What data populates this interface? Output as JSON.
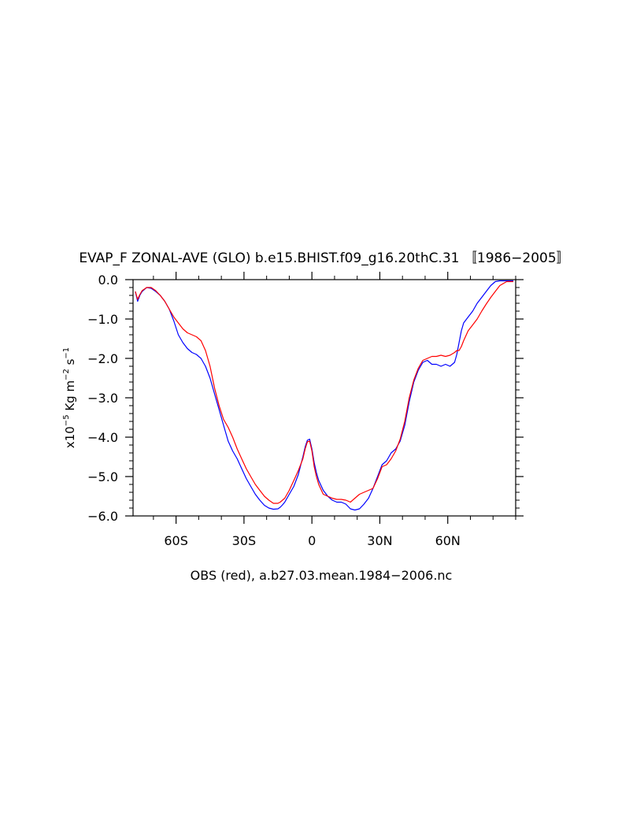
{
  "chart_data": {
    "type": "line",
    "title": "EVAP_F ZONAL-AVE (GLO) b.e15.BHIST.f09_g16.20thC.31 〚1986−2005〛",
    "ylabel": {
      "prefix": "x10",
      "exp1": "−5",
      "unit_a": " Kg m",
      "exp2": "−2",
      "unit_b": " s",
      "exp3": "−1"
    },
    "xlabel": "OBS (red), a.b27.03.mean.1984−2006.nc",
    "xlim": [
      -79,
      90
    ],
    "ylim": [
      -6.0,
      0.0
    ],
    "x_ticks": [
      {
        "value": -60,
        "label": "60S"
      },
      {
        "value": -30,
        "label": "30S"
      },
      {
        "value": 0,
        "label": "0"
      },
      {
        "value": 30,
        "label": "30N"
      },
      {
        "value": 60,
        "label": "60N"
      }
    ],
    "y_ticks": [
      {
        "value": 0.0,
        "label": "0.0"
      },
      {
        "value": -1.0,
        "label": "−1.0"
      },
      {
        "value": -2.0,
        "label": "−2.0"
      },
      {
        "value": -3.0,
        "label": "−3.0"
      },
      {
        "value": -4.0,
        "label": "−4.0"
      },
      {
        "value": -5.0,
        "label": "−5.0"
      },
      {
        "value": -6.0,
        "label": "−6.0"
      }
    ],
    "grid": false,
    "series": [
      {
        "color": "#0000ff",
        "x": [
          -78,
          -77,
          -76,
          -75,
          -73,
          -71,
          -69,
          -67,
          -65,
          -63,
          -61,
          -59,
          -57,
          -55,
          -53,
          -51,
          -49,
          -47,
          -45,
          -43,
          -41,
          -39,
          -37,
          -35,
          -33,
          -31,
          -29,
          -27,
          -25,
          -23,
          -21,
          -19,
          -17,
          -15,
          -14,
          -13,
          -12,
          -10,
          -8,
          -6,
          -4,
          -3,
          -2,
          -1,
          0,
          1,
          2,
          3,
          5,
          7,
          9,
          11,
          13,
          15,
          17,
          19,
          21,
          23,
          25,
          27,
          29,
          31,
          33,
          35,
          37,
          39,
          41,
          43,
          45,
          47,
          49,
          51,
          53,
          55,
          57,
          59,
          61,
          63,
          64,
          65,
          66,
          67,
          69,
          71,
          73,
          75,
          77,
          79,
          81,
          83,
          86,
          89
        ],
        "y": [
          -0.3,
          -0.55,
          -0.4,
          -0.3,
          -0.2,
          -0.22,
          -0.3,
          -0.4,
          -0.55,
          -0.75,
          -1.05,
          -1.4,
          -1.6,
          -1.75,
          -1.85,
          -1.9,
          -2.0,
          -2.2,
          -2.5,
          -2.9,
          -3.3,
          -3.7,
          -4.1,
          -4.35,
          -4.55,
          -4.8,
          -5.05,
          -5.25,
          -5.45,
          -5.6,
          -5.73,
          -5.8,
          -5.83,
          -5.82,
          -5.78,
          -5.72,
          -5.65,
          -5.45,
          -5.25,
          -4.95,
          -4.5,
          -4.25,
          -4.08,
          -4.05,
          -4.3,
          -4.65,
          -4.9,
          -5.1,
          -5.35,
          -5.5,
          -5.6,
          -5.65,
          -5.65,
          -5.7,
          -5.82,
          -5.85,
          -5.82,
          -5.7,
          -5.55,
          -5.3,
          -5.0,
          -4.7,
          -4.6,
          -4.4,
          -4.3,
          -4.1,
          -3.7,
          -3.1,
          -2.6,
          -2.3,
          -2.1,
          -2.05,
          -2.15,
          -2.15,
          -2.2,
          -2.15,
          -2.2,
          -2.1,
          -1.9,
          -1.6,
          -1.3,
          -1.1,
          -0.95,
          -0.8,
          -0.6,
          -0.45,
          -0.3,
          -0.15,
          -0.05,
          -0.03,
          -0.03,
          -0.03
        ]
      },
      {
        "color": "#ff0000",
        "x": [
          -78,
          -77,
          -76,
          -75,
          -73,
          -71,
          -69,
          -67,
          -65,
          -63,
          -61,
          -59,
          -57,
          -55,
          -53,
          -51,
          -49,
          -47,
          -45,
          -43,
          -41,
          -39,
          -37,
          -35,
          -33,
          -31,
          -29,
          -27,
          -25,
          -23,
          -21,
          -19,
          -17,
          -15,
          -14,
          -13,
          -12,
          -10,
          -8,
          -6,
          -4,
          -3,
          -2,
          -1,
          0,
          1,
          2,
          3,
          5,
          7,
          9,
          11,
          13,
          15,
          17,
          19,
          21,
          23,
          25,
          27,
          29,
          31,
          33,
          35,
          37,
          39,
          41,
          43,
          45,
          47,
          49,
          51,
          53,
          55,
          57,
          59,
          61,
          63,
          64,
          65,
          66,
          67,
          69,
          71,
          73,
          75,
          77,
          79,
          81,
          83,
          86,
          89
        ],
        "y": [
          -0.3,
          -0.5,
          -0.38,
          -0.28,
          -0.2,
          -0.2,
          -0.28,
          -0.4,
          -0.55,
          -0.75,
          -0.95,
          -1.1,
          -1.25,
          -1.35,
          -1.4,
          -1.45,
          -1.55,
          -1.8,
          -2.2,
          -2.75,
          -3.2,
          -3.55,
          -3.75,
          -4.0,
          -4.3,
          -4.55,
          -4.8,
          -5.0,
          -5.2,
          -5.35,
          -5.5,
          -5.6,
          -5.68,
          -5.68,
          -5.65,
          -5.6,
          -5.55,
          -5.35,
          -5.1,
          -4.85,
          -4.55,
          -4.3,
          -4.12,
          -4.1,
          -4.35,
          -4.75,
          -5.0,
          -5.2,
          -5.45,
          -5.5,
          -5.55,
          -5.58,
          -5.58,
          -5.6,
          -5.65,
          -5.55,
          -5.45,
          -5.4,
          -5.35,
          -5.3,
          -5.05,
          -4.75,
          -4.7,
          -4.55,
          -4.35,
          -4.05,
          -3.6,
          -3.0,
          -2.55,
          -2.25,
          -2.05,
          -2.0,
          -1.95,
          -1.95,
          -1.92,
          -1.95,
          -1.92,
          -1.85,
          -1.8,
          -1.8,
          -1.7,
          -1.55,
          -1.3,
          -1.15,
          -1.0,
          -0.8,
          -0.62,
          -0.45,
          -0.3,
          -0.15,
          -0.05,
          -0.05
        ]
      }
    ]
  }
}
